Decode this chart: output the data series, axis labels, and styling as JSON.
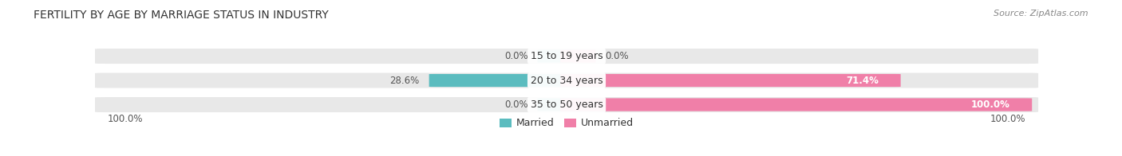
{
  "title": "FERTILITY BY AGE BY MARRIAGE STATUS IN INDUSTRY",
  "source": "Source: ZipAtlas.com",
  "categories": [
    "15 to 19 years",
    "20 to 34 years",
    "35 to 50 years"
  ],
  "married": [
    0.0,
    28.6,
    0.0
  ],
  "unmarried": [
    0.0,
    71.4,
    100.0
  ],
  "married_color": "#5bbcbf",
  "unmarried_color": "#f07fa8",
  "bar_bg_color": "#e8e8e8",
  "left_labels": [
    "0.0%",
    "28.6%",
    "0.0%"
  ],
  "right_labels": [
    "0.0%",
    "71.4%",
    "100.0%"
  ],
  "right_label_inside": [
    false,
    true,
    true
  ],
  "bottom_left": "100.0%",
  "bottom_right": "100.0%",
  "title_fontsize": 10,
  "source_fontsize": 8,
  "label_fontsize": 8.5,
  "cat_fontsize": 9,
  "figsize": [
    14.06,
    1.96
  ],
  "dpi": 100
}
